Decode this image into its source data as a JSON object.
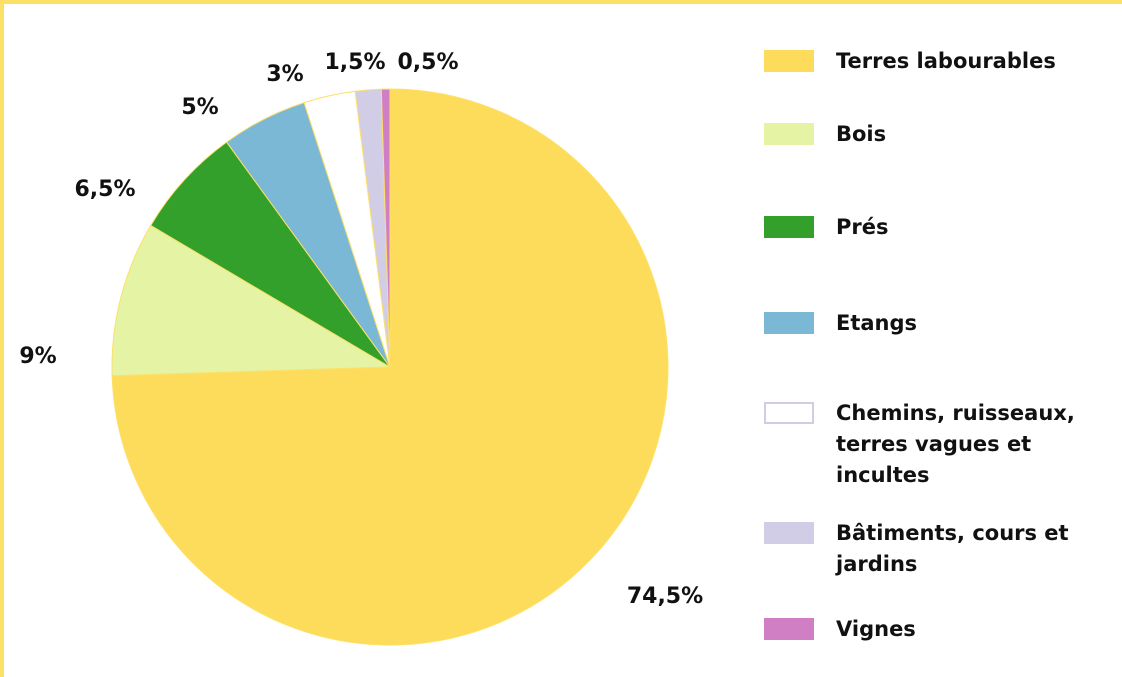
{
  "chart_data": {
    "type": "pie",
    "categories": [
      "Terres labourables",
      "Bois",
      "Prés",
      "Etangs",
      "Chemins, ruisseaux, terres vagues et incultes",
      "Bâtiments, cours et jardins",
      "Vignes"
    ],
    "values": [
      74.5,
      9,
      6.5,
      5,
      3,
      1.5,
      0.5
    ],
    "value_labels": [
      "74,5%",
      "9%",
      "6,5%",
      "5%",
      "3%",
      "1,5%",
      "0,5%"
    ],
    "colors": [
      "#fddc5c",
      "#e5f3a5",
      "#33a02c",
      "#7ab8d6",
      "#ffffff",
      "#d2cde6",
      "#d17fc4"
    ],
    "legend": "right"
  }
}
